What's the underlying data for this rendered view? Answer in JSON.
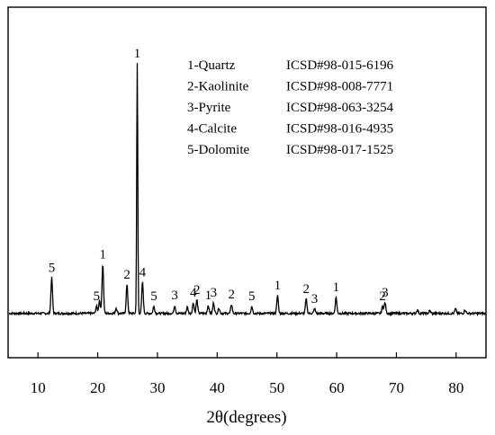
{
  "chart_data": {
    "type": "line",
    "title": "",
    "xlabel": "2θ(degrees)",
    "ylabel": "",
    "xlim": [
      5,
      85
    ],
    "x_ticks": [
      10,
      20,
      30,
      40,
      50,
      60,
      70,
      80
    ],
    "grid": false,
    "line_color": "#000000",
    "baseline": 11,
    "noise_amplitude": 1.2,
    "peak_max": 280,
    "peaks": [
      {
        "x": 12.3,
        "y": 40,
        "label": "5"
      },
      {
        "x": 19.8,
        "y": 8,
        "label": "5"
      },
      {
        "x": 20.3,
        "y": 15,
        "label": ""
      },
      {
        "x": 20.85,
        "y": 55,
        "label": "1"
      },
      {
        "x": 23.1,
        "y": 6,
        "label": ""
      },
      {
        "x": 24.9,
        "y": 32,
        "label": "2"
      },
      {
        "x": 26.62,
        "y": 280,
        "label": "1"
      },
      {
        "x": 27.5,
        "y": 35,
        "label": "4"
      },
      {
        "x": 29.4,
        "y": 8,
        "label": "5"
      },
      {
        "x": 32.9,
        "y": 9,
        "label": "3"
      },
      {
        "x": 35.0,
        "y": 7,
        "label": ""
      },
      {
        "x": 36.0,
        "y": 12,
        "label": "4"
      },
      {
        "x": 36.6,
        "y": 15,
        "label": "2"
      },
      {
        "x": 38.5,
        "y": 9,
        "label": "1"
      },
      {
        "x": 39.4,
        "y": 12,
        "label": "3"
      },
      {
        "x": 40.3,
        "y": 6,
        "label": ""
      },
      {
        "x": 42.4,
        "y": 10,
        "label": "2"
      },
      {
        "x": 45.8,
        "y": 8,
        "label": "5"
      },
      {
        "x": 50.1,
        "y": 20,
        "label": "1"
      },
      {
        "x": 54.9,
        "y": 16,
        "label": "2"
      },
      {
        "x": 56.3,
        "y": 5,
        "label": "3"
      },
      {
        "x": 59.9,
        "y": 18,
        "label": "1"
      },
      {
        "x": 67.7,
        "y": 8,
        "label": "2"
      },
      {
        "x": 68.1,
        "y": 12,
        "label": "3"
      },
      {
        "x": 73.5,
        "y": 4,
        "label": ""
      },
      {
        "x": 75.6,
        "y": 3,
        "label": ""
      },
      {
        "x": 79.9,
        "y": 5,
        "label": ""
      },
      {
        "x": 81.5,
        "y": 4,
        "label": ""
      }
    ],
    "legend": {
      "placement": "top-center",
      "entries": [
        {
          "name": "1-Quartz",
          "ref": "ICSD#98-015-6196"
        },
        {
          "name": "2-Kaolinite",
          "ref": "ICSD#98-008-7771"
        },
        {
          "name": "3-Pyrite",
          "ref": "ICSD#98-063-3254"
        },
        {
          "name": "4-Calcite",
          "ref": "ICSD#98-016-4935"
        },
        {
          "name": "5-Dolomite",
          "ref": "ICSD#98-017-1525"
        }
      ]
    }
  }
}
